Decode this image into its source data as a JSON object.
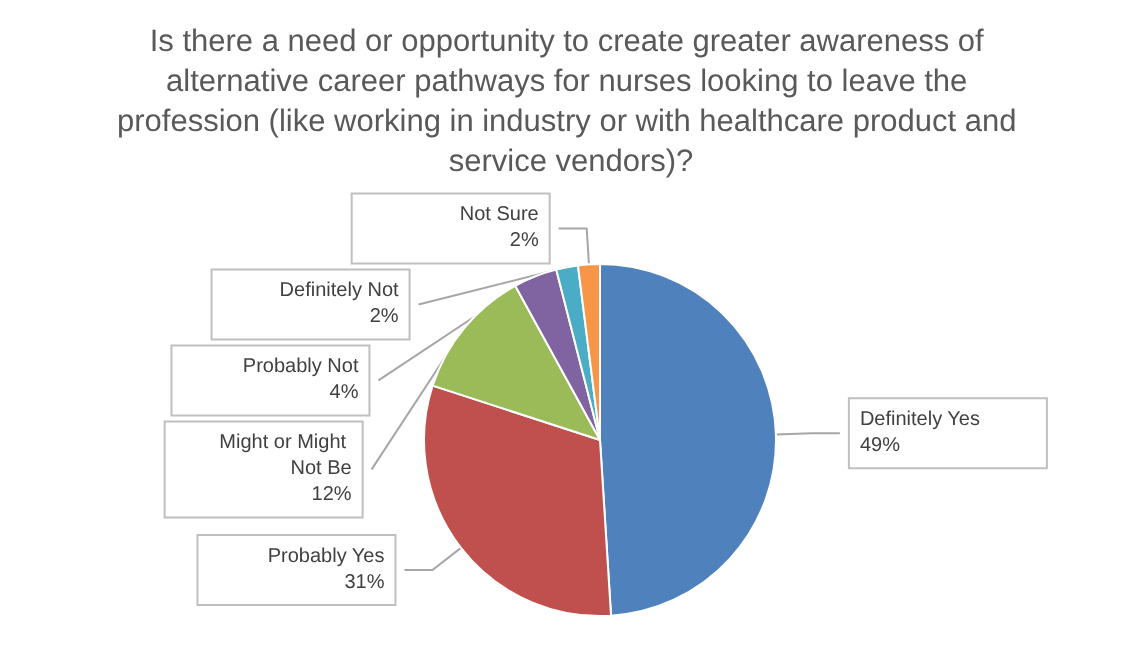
{
  "chart_data": {
    "type": "pie",
    "title": "Is there a need or opportunity to create greater awareness of alternative career pathways for nurses looking to leave the profession (like working in industry or with healthcare product and service vendors)?",
    "categories": [
      "Definitely Yes",
      "Probably Yes",
      "Might or Might Not Be",
      "Probably Not",
      "Definitely Not",
      "Not Sure"
    ],
    "values": [
      49,
      31,
      12,
      4,
      2,
      2
    ],
    "value_labels": [
      "49%",
      "31%",
      "12%",
      "4%",
      "2%",
      "2%"
    ],
    "colors": [
      "#4f81bd",
      "#c0504d",
      "#9bbb59",
      "#8064a2",
      "#4bacc6",
      "#f79646"
    ],
    "legend": false
  }
}
